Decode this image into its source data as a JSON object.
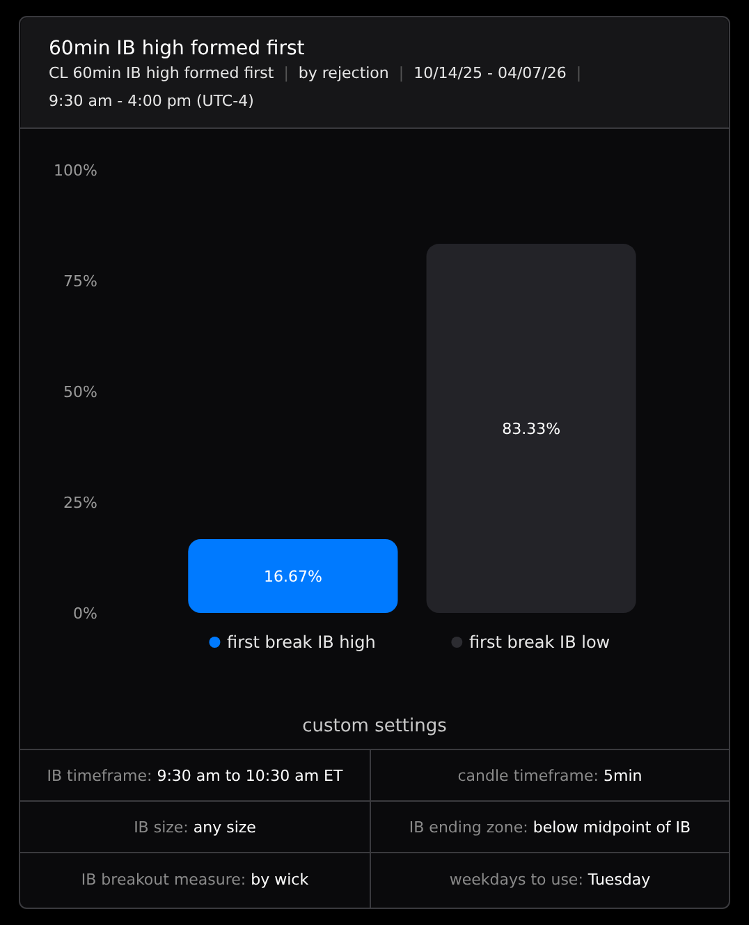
{
  "chart_data": {
    "type": "bar",
    "title": "60min IB high formed first",
    "subtitle": "CL 60min IB high formed first | by rejection | 10/14/25 - 04/07/26 | 9:30 am - 4:00 pm (UTC-4)",
    "categories": [
      "first break IB high",
      "first break IB low"
    ],
    "values": [
      16.67,
      83.33
    ],
    "colors": [
      "#007aff",
      "#232328"
    ],
    "value_labels": [
      "16.67%",
      "83.33%"
    ],
    "ylim": [
      0,
      100
    ],
    "yticks": [
      {
        "value": 0,
        "label": "0%"
      },
      {
        "value": 25,
        "label": "25%"
      },
      {
        "value": 50,
        "label": "50%"
      },
      {
        "value": 75,
        "label": "75%"
      },
      {
        "value": 100,
        "label": "100%"
      }
    ],
    "annotations": [
      "custom settings",
      "IB timeframe: 9:30 am to 10:30 am ET",
      "candle timeframe: 5min",
      "IB size: any size",
      "IB ending zone: below midpoint of IB",
      "IB breakout measure: by wick",
      "weekdays to use: Tuesday"
    ]
  }
}
